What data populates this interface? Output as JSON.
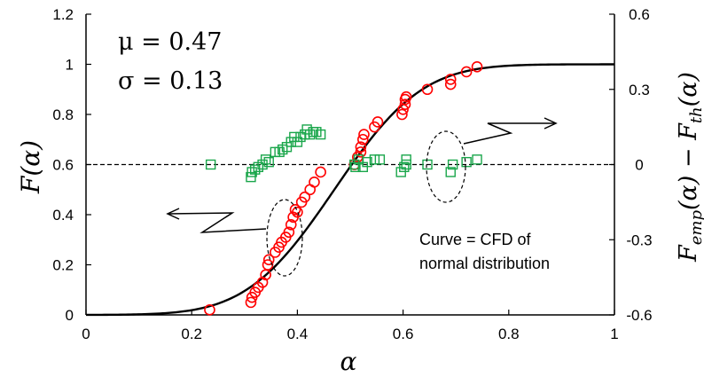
{
  "chart_data": {
    "type": "scatter",
    "title": "",
    "xlabel": "α",
    "ylabel_left": "F(α)",
    "ylabel_right": {
      "base": "F",
      "sub1": "emp",
      "mid": "(α) − F",
      "sub2": "th",
      "tail": "(α)"
    },
    "xlim": [
      0,
      1
    ],
    "ylim_left": [
      0,
      1.2
    ],
    "ylim_right": [
      -0.6,
      0.6
    ],
    "x_ticks": [
      "0",
      "0.2",
      "0.4",
      "0.6",
      "0.8",
      "1"
    ],
    "y_left_ticks": [
      "0",
      "0.2",
      "0.4",
      "0.6",
      "0.8",
      "1",
      "1.2"
    ],
    "y_right_ticks": [
      "-0.6",
      "-0.3",
      "0",
      "0.3",
      "0.6"
    ],
    "params": {
      "mu": "μ = 0.47",
      "sigma": "σ = 0.13",
      "mu_value": 0.47,
      "sigma_value": 0.13
    },
    "annotation": {
      "line1": "Curve = CFD of",
      "line2": "normal distribution"
    },
    "zero_line_right": 0,
    "series": [
      {
        "marker": "circle",
        "color": "#ff0000",
        "axis": "left",
        "points": [
          [
            0.234,
            0.02
          ],
          [
            0.312,
            0.05
          ],
          [
            0.314,
            0.07
          ],
          [
            0.32,
            0.09
          ],
          [
            0.326,
            0.11
          ],
          [
            0.334,
            0.13
          ],
          [
            0.34,
            0.16
          ],
          [
            0.344,
            0.2
          ],
          [
            0.346,
            0.22
          ],
          [
            0.358,
            0.25
          ],
          [
            0.365,
            0.27
          ],
          [
            0.37,
            0.29
          ],
          [
            0.378,
            0.31
          ],
          [
            0.384,
            0.33
          ],
          [
            0.388,
            0.36
          ],
          [
            0.392,
            0.39
          ],
          [
            0.396,
            0.42
          ],
          [
            0.4,
            0.41
          ],
          [
            0.408,
            0.45
          ],
          [
            0.414,
            0.47
          ],
          [
            0.424,
            0.5
          ],
          [
            0.432,
            0.53
          ],
          [
            0.444,
            0.57
          ],
          [
            0.508,
            0.6
          ],
          [
            0.514,
            0.63
          ],
          [
            0.52,
            0.65
          ],
          [
            0.52,
            0.67
          ],
          [
            0.524,
            0.7
          ],
          [
            0.526,
            0.72
          ],
          [
            0.546,
            0.75
          ],
          [
            0.552,
            0.77
          ],
          [
            0.598,
            0.8
          ],
          [
            0.6,
            0.82
          ],
          [
            0.604,
            0.84
          ],
          [
            0.604,
            0.86
          ],
          [
            0.606,
            0.87
          ],
          [
            0.646,
            0.9
          ],
          [
            0.69,
            0.92
          ],
          [
            0.69,
            0.94
          ],
          [
            0.72,
            0.97
          ],
          [
            0.74,
            0.99
          ]
        ]
      },
      {
        "marker": "square",
        "color": "#1aa64b",
        "axis": "right",
        "points": [
          [
            0.236,
            0.0
          ],
          [
            0.312,
            -0.05
          ],
          [
            0.314,
            -0.03
          ],
          [
            0.32,
            -0.02
          ],
          [
            0.326,
            -0.01
          ],
          [
            0.334,
            0.0
          ],
          [
            0.34,
            0.02
          ],
          [
            0.346,
            0.01
          ],
          [
            0.358,
            0.05
          ],
          [
            0.366,
            0.05
          ],
          [
            0.372,
            0.06
          ],
          [
            0.38,
            0.07
          ],
          [
            0.388,
            0.09
          ],
          [
            0.394,
            0.11
          ],
          [
            0.4,
            0.09
          ],
          [
            0.406,
            0.11
          ],
          [
            0.414,
            0.12
          ],
          [
            0.418,
            0.14
          ],
          [
            0.424,
            0.12
          ],
          [
            0.43,
            0.13
          ],
          [
            0.436,
            0.13
          ],
          [
            0.444,
            0.12
          ],
          [
            0.508,
            0.0
          ],
          [
            0.51,
            -0.01
          ],
          [
            0.516,
            0.02
          ],
          [
            0.524,
            -0.01
          ],
          [
            0.532,
            0.01
          ],
          [
            0.546,
            0.02
          ],
          [
            0.556,
            0.02
          ],
          [
            0.596,
            -0.03
          ],
          [
            0.602,
            -0.01
          ],
          [
            0.606,
            0.0
          ],
          [
            0.606,
            0.02
          ],
          [
            0.646,
            0.0
          ],
          [
            0.69,
            -0.03
          ],
          [
            0.694,
            0.0
          ],
          [
            0.72,
            0.01
          ],
          [
            0.74,
            0.02
          ]
        ]
      }
    ]
  }
}
